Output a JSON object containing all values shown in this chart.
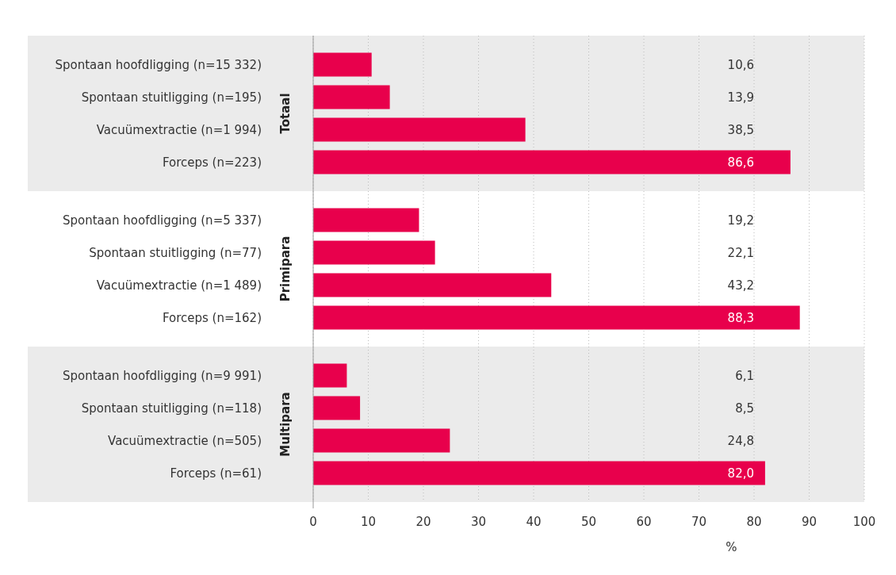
{
  "chart_data": {
    "type": "bar",
    "orientation": "horizontal",
    "categories": [
      "Spontaan hoofdligging (n=15 332)",
      "Spontaan stuitligging (n=195)",
      "Vacuümextractie (n=1 994)",
      "Forceps (n=223)",
      "Spontaan hoofdligging (n=5 337)",
      "Spontaan stuitligging (n=77)",
      "Vacuümextractie (n=1 489)",
      "Forceps (n=162)",
      "Spontaan hoofdligging (n=9 991)",
      "Spontaan stuitligging (n=118)",
      "Vacuümextractie (n=505)",
      "Forceps (n=61)"
    ],
    "values": [
      10.6,
      13.9,
      38.5,
      86.6,
      19.2,
      22.1,
      43.2,
      88.3,
      6.1,
      8.5,
      24.8,
      82.0
    ],
    "value_labels": [
      "10,6",
      "13,9",
      "38,5",
      "86,6",
      "19,2",
      "22,1",
      "43,2",
      "88,3",
      "6,1",
      "8,5",
      "24,8",
      "82,0"
    ],
    "color": "#e8004c",
    "xlim": [
      0,
      100
    ],
    "xticks": [
      0,
      10,
      20,
      30,
      40,
      50,
      60,
      70,
      80,
      90,
      100
    ],
    "xlabel": "%",
    "grid": "x",
    "annotations": [
      "Primipara"
    ],
    "bands": [
      {
        "axis": "y",
        "from": "Spontaan hoofdligging (n=15 332)",
        "to": "Forceps (n=223)",
        "label": "Totaal",
        "color": "#ebebeb"
      },
      {
        "axis": "y",
        "from": "Spontaan hoofdligging (n=9 991)",
        "to": "Forceps (n=61)",
        "label": "Multipara",
        "color": "#ebebeb"
      }
    ]
  }
}
